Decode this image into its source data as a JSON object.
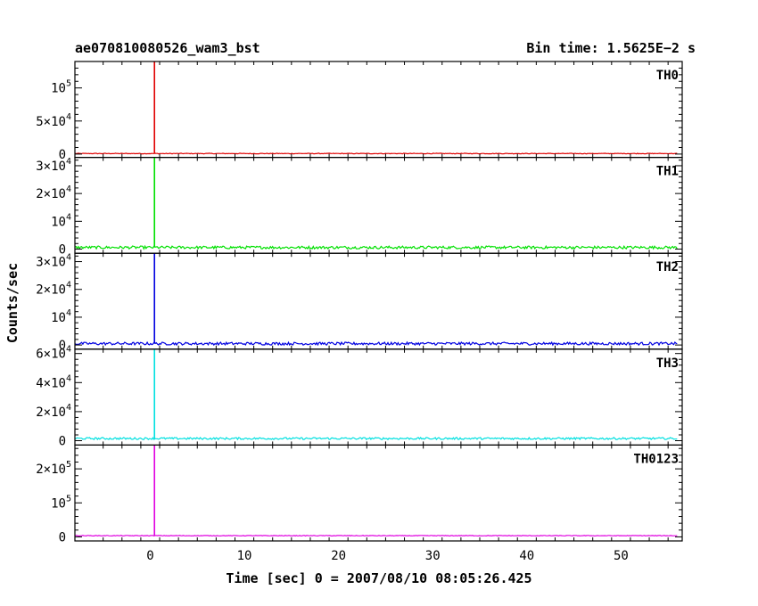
{
  "header": {
    "title": "ae070810080526_wam3_bst",
    "bin_time": "Bin time: 1.5625E−2 s"
  },
  "chart_data": {
    "type": "line",
    "xlabel": "Time [sec] 0 = 2007/08/10 08:05:26.425",
    "ylabel": "Counts/sec",
    "xlim": [
      -8,
      56.5
    ],
    "x_ticks": [
      {
        "v": 0,
        "t": "0"
      },
      {
        "v": 10,
        "t": "10"
      },
      {
        "v": 20,
        "t": "20"
      },
      {
        "v": 30,
        "t": "30"
      },
      {
        "v": 40,
        "t": "40"
      },
      {
        "v": 50,
        "t": "50"
      }
    ],
    "data_start": -8,
    "data_end": 56,
    "spike_time": 0.45,
    "panels": [
      {
        "name": "TH0",
        "color": "#e00000",
        "ylim": [
          -5000,
          140000
        ],
        "baseline": 800,
        "noise": 500,
        "peak": 140000,
        "y_ticks": [
          {
            "v": 0,
            "m": "0",
            "e": ""
          },
          {
            "v": 50000,
            "m": "5×10",
            "e": "4"
          },
          {
            "v": 100000,
            "m": "10",
            "e": "5"
          }
        ]
      },
      {
        "name": "TH1",
        "color": "#00e000",
        "ylim": [
          -1500,
          33000
        ],
        "baseline": 600,
        "noise": 500,
        "peak": 33000,
        "y_ticks": [
          {
            "v": 0,
            "m": "0",
            "e": ""
          },
          {
            "v": 10000,
            "m": "10",
            "e": "4"
          },
          {
            "v": 20000,
            "m": "2×10",
            "e": "4"
          },
          {
            "v": 30000,
            "m": "3×10",
            "e": "4"
          }
        ]
      },
      {
        "name": "TH2",
        "color": "#0000e0",
        "ylim": [
          -1500,
          33000
        ],
        "baseline": 500,
        "noise": 500,
        "peak": 33000,
        "y_ticks": [
          {
            "v": 0,
            "m": "0",
            "e": ""
          },
          {
            "v": 10000,
            "m": "10",
            "e": "4"
          },
          {
            "v": 20000,
            "m": "2×10",
            "e": "4"
          },
          {
            "v": 30000,
            "m": "3×10",
            "e": "4"
          }
        ]
      },
      {
        "name": "TH3",
        "color": "#00e0e0",
        "ylim": [
          -3000,
          63000
        ],
        "baseline": 1500,
        "noise": 700,
        "peak": 63000,
        "y_ticks": [
          {
            "v": 0,
            "m": "0",
            "e": ""
          },
          {
            "v": 20000,
            "m": "2×10",
            "e": "4"
          },
          {
            "v": 40000,
            "m": "4×10",
            "e": "4"
          },
          {
            "v": 60000,
            "m": "6×10",
            "e": "4"
          }
        ]
      },
      {
        "name": "TH0123",
        "color": "#e000e0",
        "ylim": [
          -12000,
          270000
        ],
        "baseline": 3500,
        "noise": 900,
        "peak": 270000,
        "y_ticks": [
          {
            "v": 0,
            "m": "0",
            "e": ""
          },
          {
            "v": 100000,
            "m": "10",
            "e": "5"
          },
          {
            "v": 200000,
            "m": "2×10",
            "e": "5"
          }
        ]
      }
    ]
  }
}
